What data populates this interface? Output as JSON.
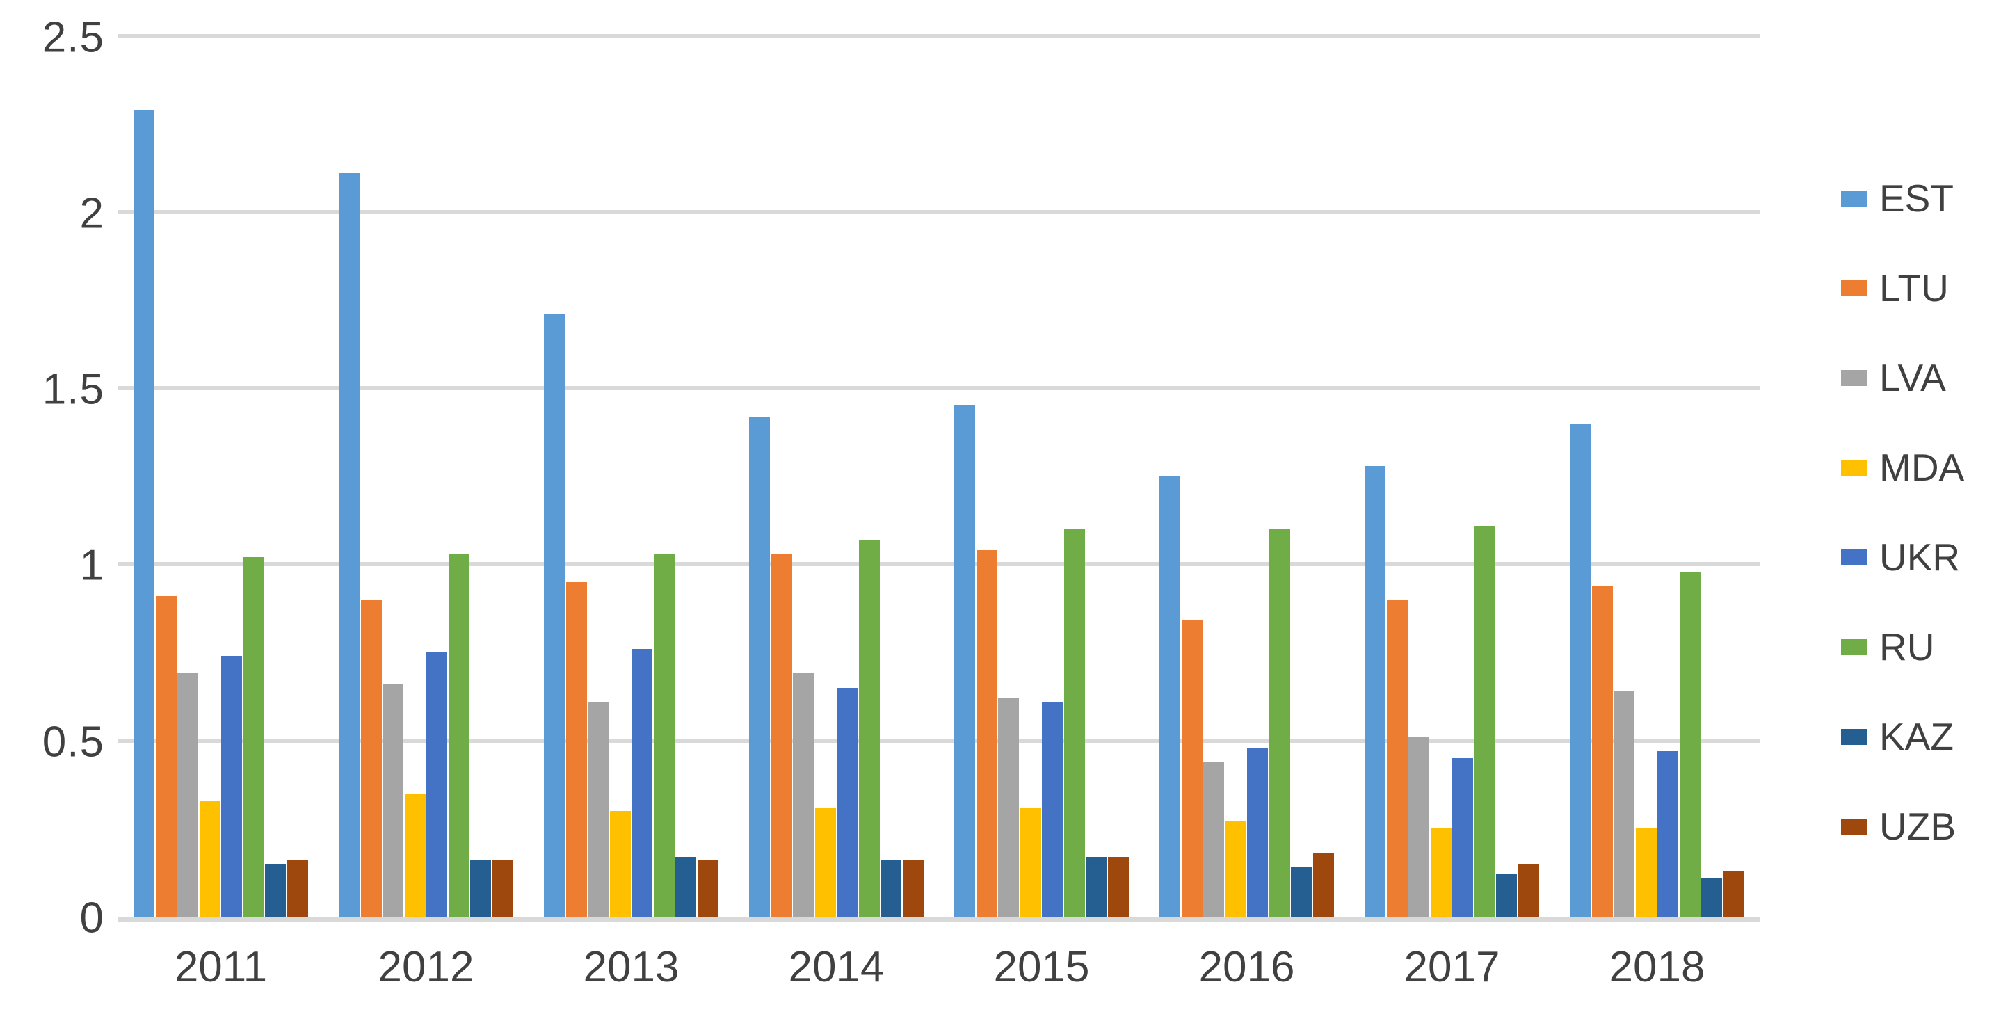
{
  "chart_data": {
    "type": "bar",
    "title": "",
    "xlabel": "",
    "ylabel": "",
    "categories": [
      "2011",
      "2012",
      "2013",
      "2014",
      "2015",
      "2016",
      "2017",
      "2018"
    ],
    "series": [
      {
        "name": "EST",
        "color": "#5B9BD5",
        "values": [
          2.29,
          2.11,
          1.71,
          1.42,
          1.45,
          1.25,
          1.28,
          1.4
        ]
      },
      {
        "name": "LTU",
        "color": "#ED7D31",
        "values": [
          0.91,
          0.9,
          0.95,
          1.03,
          1.04,
          0.84,
          0.9,
          0.94
        ]
      },
      {
        "name": "LVA",
        "color": "#A5A5A5",
        "values": [
          0.69,
          0.66,
          0.61,
          0.69,
          0.62,
          0.44,
          0.51,
          0.64
        ]
      },
      {
        "name": "MDA",
        "color": "#FFC000",
        "values": [
          0.33,
          0.35,
          0.3,
          0.31,
          0.31,
          0.27,
          0.25,
          0.25
        ]
      },
      {
        "name": "UKR",
        "color": "#4472C4",
        "values": [
          0.74,
          0.75,
          0.76,
          0.65,
          0.61,
          0.48,
          0.45,
          0.47
        ]
      },
      {
        "name": "RU",
        "color": "#70AD47",
        "values": [
          1.02,
          1.03,
          1.03,
          1.07,
          1.1,
          1.1,
          1.11,
          0.98
        ]
      },
      {
        "name": "KAZ",
        "color": "#255E91",
        "values": [
          0.15,
          0.16,
          0.17,
          0.16,
          0.17,
          0.14,
          0.12,
          0.11
        ]
      },
      {
        "name": "UZB",
        "color": "#9E480E",
        "values": [
          0.16,
          0.16,
          0.16,
          0.16,
          0.17,
          0.18,
          0.15,
          0.13
        ]
      }
    ],
    "y_axis": {
      "min": 0,
      "max": 2.5,
      "step": 0.5,
      "tick_labels": [
        "0",
        "0.5",
        "1",
        "1.5",
        "2",
        "2.5"
      ]
    },
    "legend": {
      "position": "right",
      "entries": [
        "EST",
        "LTU",
        "LVA",
        "MDA",
        "UKR",
        "RU",
        "KAZ",
        "UZB"
      ]
    },
    "grid": true,
    "colors": {
      "gridline": "#D9D9D9",
      "axis_text": "#404040",
      "background": "#FFFFFF"
    }
  }
}
